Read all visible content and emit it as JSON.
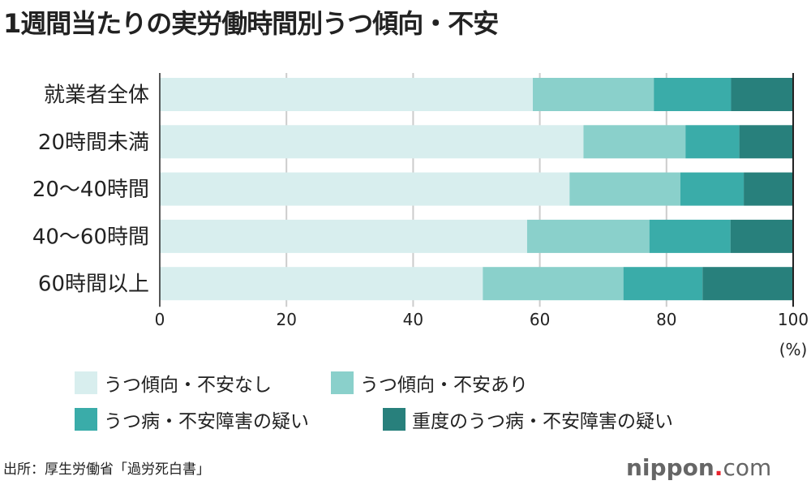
{
  "title": "1週間当たりの実労働時間別うつ傾向・不安",
  "source": "出所：厚生労働省「過労死白書」",
  "logo": {
    "name": "nippon",
    "dot": ".",
    "tld": "com"
  },
  "chart_data": {
    "type": "bar",
    "orientation": "horizontal",
    "stacked": true,
    "title": "1週間当たりの実労働時間別うつ傾向・不安",
    "categories": [
      "就業者全体",
      "20時間未満",
      "20〜40時間",
      "40〜60時間",
      "60時間以上"
    ],
    "series": [
      {
        "name": "うつ傾向・不安なし",
        "color": "#d8eeee",
        "values": [
          58.9,
          66.9,
          64.7,
          58.0,
          51.0
        ]
      },
      {
        "name": "うつ傾向・不安あり",
        "color": "#8ad0cb",
        "values": [
          19.1,
          16.1,
          17.5,
          19.3,
          22.2
        ]
      },
      {
        "name": "うつ病・不安障害の疑い",
        "color": "#3aaca9",
        "values": [
          12.2,
          8.5,
          10.0,
          12.8,
          12.5
        ]
      },
      {
        "name": "重度のうつ病・不安障害の疑い",
        "color": "#28807c",
        "values": [
          9.8,
          8.5,
          7.8,
          9.9,
          14.3
        ]
      }
    ],
    "xlim": [
      0,
      100
    ],
    "xticks": [
      "0",
      "20",
      "40",
      "60",
      "80",
      "100"
    ],
    "xunit": "(%)",
    "grid": true,
    "legend": "bottom"
  }
}
